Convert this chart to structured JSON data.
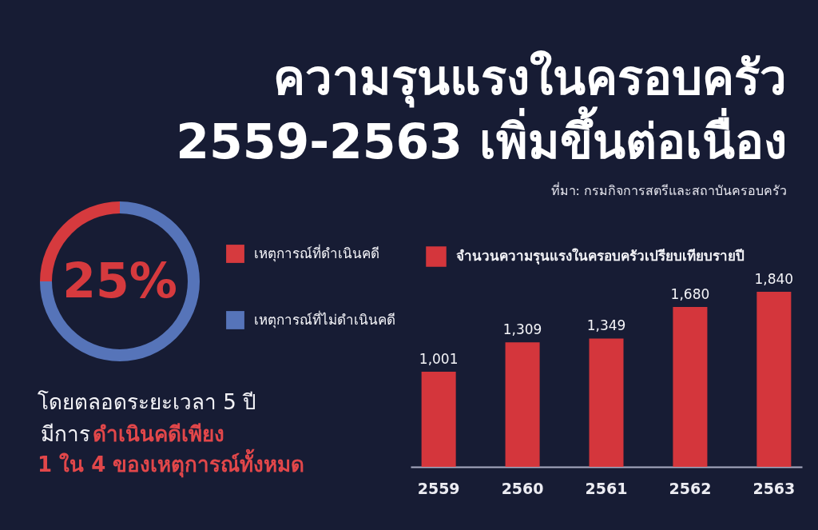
{
  "chart_data": [
    {
      "type": "donut",
      "title": "ความรุนแรงในครอบครัว\n2559-2563 เพิ่มขึ้นต่อเนื่อง",
      "annotations": [
        "ที่มา: กรมกิจการสตรีและสถาบันครอบครัว",
        "โดยตลอดระยะเวลา 5 ปี",
        "มีการ",
        "ดำเนินคดีเพียง",
        "1 ใน 4 ของเหตุการณ์ทั้งหมด"
      ],
      "categories": [
        "เหตุการณ์ที่ดำเนินคดี",
        "เหตุการณ์ที่ไม่ดำเนินคดี"
      ],
      "values": [
        25,
        75
      ],
      "colors": [
        "#d63a3e",
        "#5674b9"
      ],
      "value_labels": [
        "25%",
        null
      ],
      "legend": "right"
    },
    {
      "type": "bar",
      "categories": [
        "2559",
        "2560",
        "2561",
        "2562",
        "2563"
      ],
      "series": [
        {
          "name": "จำนวนความรุนแรงในครอบครัวเปรียบเทียบรายปี",
          "color": "#d4363c",
          "values": [
            1001,
            1309,
            1349,
            1680,
            1840
          ],
          "value_labels": [
            "1,001",
            "1,309",
            "1,349",
            "1,680",
            "1,840"
          ]
        }
      ],
      "tick_labels": "x",
      "grid": false,
      "legend": "top left"
    }
  ]
}
